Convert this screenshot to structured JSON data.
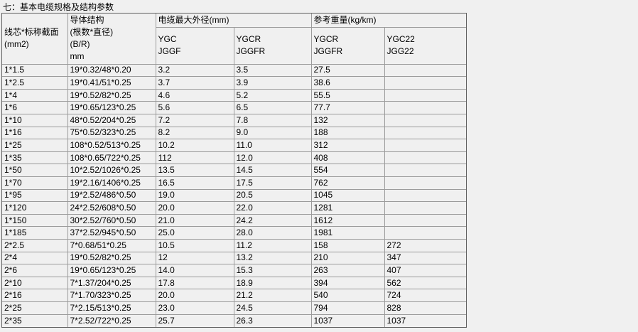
{
  "title": "七：基本电缆规格及结构参数",
  "colors": {
    "page_background": "#f0f0f0",
    "border_inner": "#9b9b9b",
    "border_outer": "#5f5f5f",
    "text": "#000000"
  },
  "table": {
    "headers": {
      "col_size": "线芯*标称截面\n(mm2)",
      "col_conductor": "导体结构\n(根数*直径)\n(B/R)\nmm",
      "group_outer_diameter": "电缆最大外径(mm)",
      "group_weight": "参考重量(kg/km)",
      "sub_od_ygc": "YGC\nJGGF",
      "sub_od_ygcr": "YGCR\nJGGFR",
      "sub_wt_ygcr": "YGCR\nJGGFR",
      "sub_wt_ygc22": "YGC22\nJGG22"
    },
    "rows": [
      [
        "1*1.5",
        "19*0.32/48*0.20",
        "3.2",
        "3.5",
        "27.5",
        ""
      ],
      [
        "1*2.5",
        "19*0.41/51*0.25",
        "3.7",
        "3.9",
        "38.6",
        ""
      ],
      [
        "1*4",
        "19*0.52/82*0.25",
        "4.6",
        "5.2",
        "55.5",
        ""
      ],
      [
        "1*6",
        "19*0.65/123*0.25",
        "5.6",
        "6.5",
        "77.7",
        ""
      ],
      [
        "1*10",
        "48*0.52/204*0.25",
        "7.2",
        "7.8",
        "132",
        ""
      ],
      [
        "1*16",
        "75*0.52/323*0.25",
        "8.2",
        "9.0",
        "188",
        ""
      ],
      [
        "1*25",
        "108*0.52/513*0.25",
        "10.2",
        "11.0",
        "312",
        ""
      ],
      [
        "1*35",
        "108*0.65/722*0.25",
        "112",
        "12.0",
        "408",
        ""
      ],
      [
        "1*50",
        "10*2.52/1026*0.25",
        "13.5",
        "14.5",
        "554",
        ""
      ],
      [
        "1*70",
        "19*2.16/1406*0.25",
        "16.5",
        "17.5",
        "762",
        ""
      ],
      [
        "1*95",
        "19*2.52/486*0.50",
        "19.0",
        "20.5",
        "1045",
        ""
      ],
      [
        "1*120",
        "24*2.52/608*0.50",
        "20.0",
        "22.0",
        "1281",
        ""
      ],
      [
        "1*150",
        "30*2.52/760*0.50",
        "21.0",
        "24.2",
        "1612",
        ""
      ],
      [
        "1*185",
        "37*2.52/945*0.50",
        "25.0",
        "28.0",
        "1981",
        ""
      ],
      [
        "2*2.5",
        "7*0.68/51*0.25",
        "10.5",
        "11.2",
        "158",
        "272"
      ],
      [
        "2*4",
        "19*0.52/82*0.25",
        "12",
        "13.2",
        "210",
        "347"
      ],
      [
        "2*6",
        "19*0.65/123*0.25",
        "14.0",
        "15.3",
        "263",
        "407"
      ],
      [
        "2*10",
        "7*1.37/204*0.25",
        "17.8",
        "18.9",
        "394",
        "562"
      ],
      [
        "2*16",
        "7*1.70/323*0.25",
        "20.0",
        "21.2",
        "540",
        "724"
      ],
      [
        "2*25",
        "7*2.15/513*0.25",
        "23.0",
        "24.5",
        "794",
        "828"
      ],
      [
        "2*35",
        "7*2.52/722*0.25",
        "25.7",
        "26.3",
        "1037",
        "1037"
      ]
    ]
  }
}
